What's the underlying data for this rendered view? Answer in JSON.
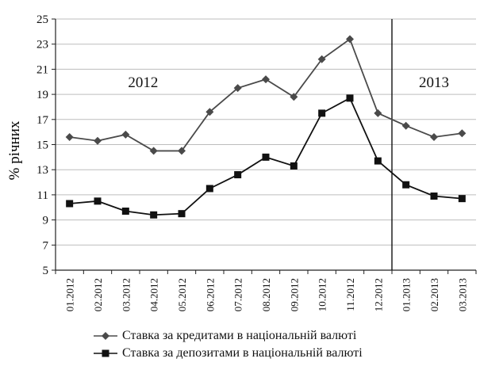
{
  "chart_data": {
    "type": "line",
    "title": "",
    "xlabel": "",
    "ylabel": "% річних",
    "ylim": [
      5,
      25
    ],
    "yticks": [
      5,
      7,
      9,
      11,
      13,
      15,
      17,
      19,
      21,
      23,
      25
    ],
    "categories": [
      "01.2012",
      "02.2012",
      "03.2012",
      "04.2012",
      "05.2012",
      "06.2012",
      "07.2012",
      "08.2012",
      "09.2012",
      "10.2012",
      "11.2012",
      "12.2012",
      "01.2013",
      "02.2013",
      "03.2013"
    ],
    "series": [
      {
        "name": "Ставка за кредитами в національній валюті",
        "marker": "diamond",
        "color": "#4a4a4a",
        "values": [
          15.6,
          15.3,
          15.8,
          14.5,
          14.5,
          17.6,
          19.5,
          20.2,
          18.8,
          21.8,
          23.4,
          17.5,
          16.5,
          15.6,
          15.9
        ]
      },
      {
        "name": "Ставка за депозитами в національній валюті",
        "marker": "square",
        "color": "#111111",
        "values": [
          10.3,
          10.5,
          9.7,
          9.4,
          9.5,
          11.5,
          12.6,
          14.0,
          13.3,
          17.5,
          18.7,
          13.7,
          11.8,
          10.9,
          10.7
        ]
      }
    ],
    "annotations": [
      "2012",
      "2013"
    ],
    "divider_after_category": "12.2012",
    "grid": true,
    "legend_position": "bottom"
  }
}
